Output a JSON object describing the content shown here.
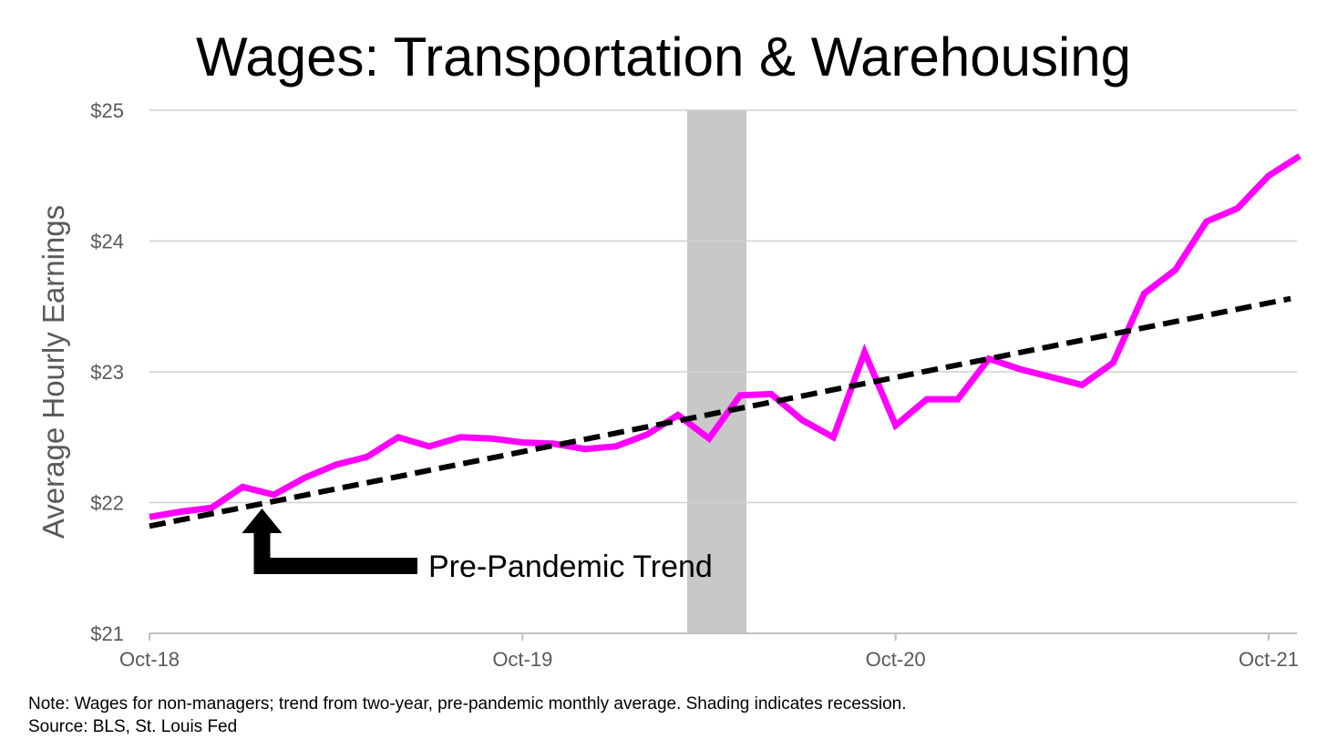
{
  "chart_data": {
    "type": "line",
    "title": "Wages: Transportation & Warehousing",
    "ylabel": "Average Hourly Earnings",
    "xlabel": "",
    "ylim": [
      21,
      25
    ],
    "y_ticks": [
      21,
      22,
      23,
      24,
      25
    ],
    "y_tick_labels": [
      "$21",
      "$22",
      "$23",
      "$24",
      "$25"
    ],
    "x_ticks": [
      {
        "label": "Oct-18",
        "index": 0
      },
      {
        "label": "Oct-19",
        "index": 12
      },
      {
        "label": "Oct-20",
        "index": 24
      },
      {
        "label": "Oct-21",
        "index": 36
      }
    ],
    "grid": true,
    "recession_shading": {
      "start_index": 17,
      "end_index": 19,
      "color": "#c8c8c8"
    },
    "series": [
      {
        "color": "#ff00ff",
        "style": "solid",
        "values": [
          21.89,
          21.93,
          21.96,
          22.12,
          22.06,
          22.19,
          22.29,
          22.35,
          22.5,
          22.43,
          22.5,
          22.49,
          22.46,
          22.45,
          22.41,
          22.43,
          22.52,
          22.67,
          22.49,
          22.82,
          22.83,
          22.63,
          22.5,
          23.15,
          22.59,
          22.79,
          22.79,
          23.1,
          23.02,
          22.96,
          22.9,
          23.07,
          23.6,
          23.78,
          24.15,
          24.25,
          24.5,
          24.65
        ]
      },
      {
        "name": "Pre-Pandemic Trend",
        "color": "#000000",
        "style": "dashed",
        "x_start_index": 0,
        "x_end_index": 37,
        "start": 21.82,
        "end": 23.56
      }
    ],
    "annotation": {
      "text": "Pre-Pandemic Trend",
      "arrow_at_index": 4.5
    }
  },
  "footer": {
    "note": "Note: Wages for non-managers; trend from two-year, pre-pandemic monthly average. Shading indicates recession.",
    "source": "Source: BLS, St. Louis Fed"
  }
}
